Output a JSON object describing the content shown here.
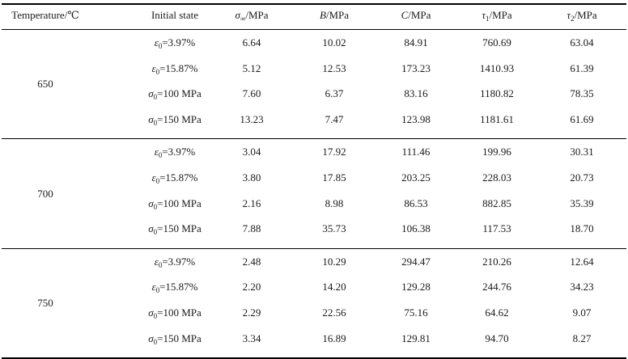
{
  "headers": [
    {
      "text": "Temperature/℃"
    },
    {
      "text": "Initial state"
    },
    {
      "sym": "σ",
      "sub": "∞",
      "unit": "/MPa"
    },
    {
      "sym": "B",
      "sub": "",
      "unit": "/MPa"
    },
    {
      "sym": "C",
      "sub": "",
      "unit": "/MPa"
    },
    {
      "sym": "τ",
      "sub": "1",
      "unit": "/MPa"
    },
    {
      "sym": "τ",
      "sub": "2",
      "unit": "/MPa"
    }
  ],
  "groups": [
    {
      "temperature": "650",
      "rows": [
        {
          "state": {
            "sym": "ε",
            "sub": "0",
            "val": "=3.97%"
          },
          "values": [
            "6.64",
            "10.02",
            "84.91",
            "760.69",
            "63.04"
          ]
        },
        {
          "state": {
            "sym": "ε",
            "sub": "0",
            "val": "=15.87%"
          },
          "values": [
            "5.12",
            "12.53",
            "173.23",
            "1410.93",
            "61.39"
          ]
        },
        {
          "state": {
            "sym": "σ",
            "sub": "0",
            "val": "=100 MPa"
          },
          "values": [
            "7.60",
            "6.37",
            "83.16",
            "1180.82",
            "78.35"
          ]
        },
        {
          "state": {
            "sym": "σ",
            "sub": "0",
            "val": "=150 MPa"
          },
          "values": [
            "13.23",
            "7.47",
            "123.98",
            "1181.61",
            "61.69"
          ]
        }
      ]
    },
    {
      "temperature": "700",
      "rows": [
        {
          "state": {
            "sym": "ε",
            "sub": "0",
            "val": "=3.97%"
          },
          "values": [
            "3.04",
            "17.92",
            "111.46",
            "199.96",
            "30.31"
          ]
        },
        {
          "state": {
            "sym": "ε",
            "sub": "0",
            "val": "=15.87%"
          },
          "values": [
            "3.80",
            "17.85",
            "203.25",
            "228.03",
            "20.73"
          ]
        },
        {
          "state": {
            "sym": "σ",
            "sub": "0",
            "val": "=100 MPa"
          },
          "values": [
            "2.16",
            "8.98",
            "86.53",
            "882.85",
            "35.39"
          ]
        },
        {
          "state": {
            "sym": "σ",
            "sub": "0",
            "val": "=150 MPa"
          },
          "values": [
            "7.88",
            "35.73",
            "106.38",
            "117.53",
            "18.70"
          ]
        }
      ]
    },
    {
      "temperature": "750",
      "rows": [
        {
          "state": {
            "sym": "ε",
            "sub": "0",
            "val": "=3.97%"
          },
          "values": [
            "2.48",
            "10.29",
            "294.47",
            "210.26",
            "12.64"
          ]
        },
        {
          "state": {
            "sym": "ε",
            "sub": "0",
            "val": "=15.87%"
          },
          "values": [
            "2.20",
            "14.20",
            "129.28",
            "244.76",
            "34.23"
          ]
        },
        {
          "state": {
            "sym": "σ",
            "sub": "0",
            "val": "=100 MPa"
          },
          "values": [
            "2.29",
            "22.56",
            "75.16",
            "64.62",
            "9.07"
          ]
        },
        {
          "state": {
            "sym": "σ",
            "sub": "0",
            "val": "=150 MPa"
          },
          "values": [
            "3.34",
            "16.89",
            "129.81",
            "94.70",
            "8.27"
          ]
        }
      ]
    }
  ]
}
